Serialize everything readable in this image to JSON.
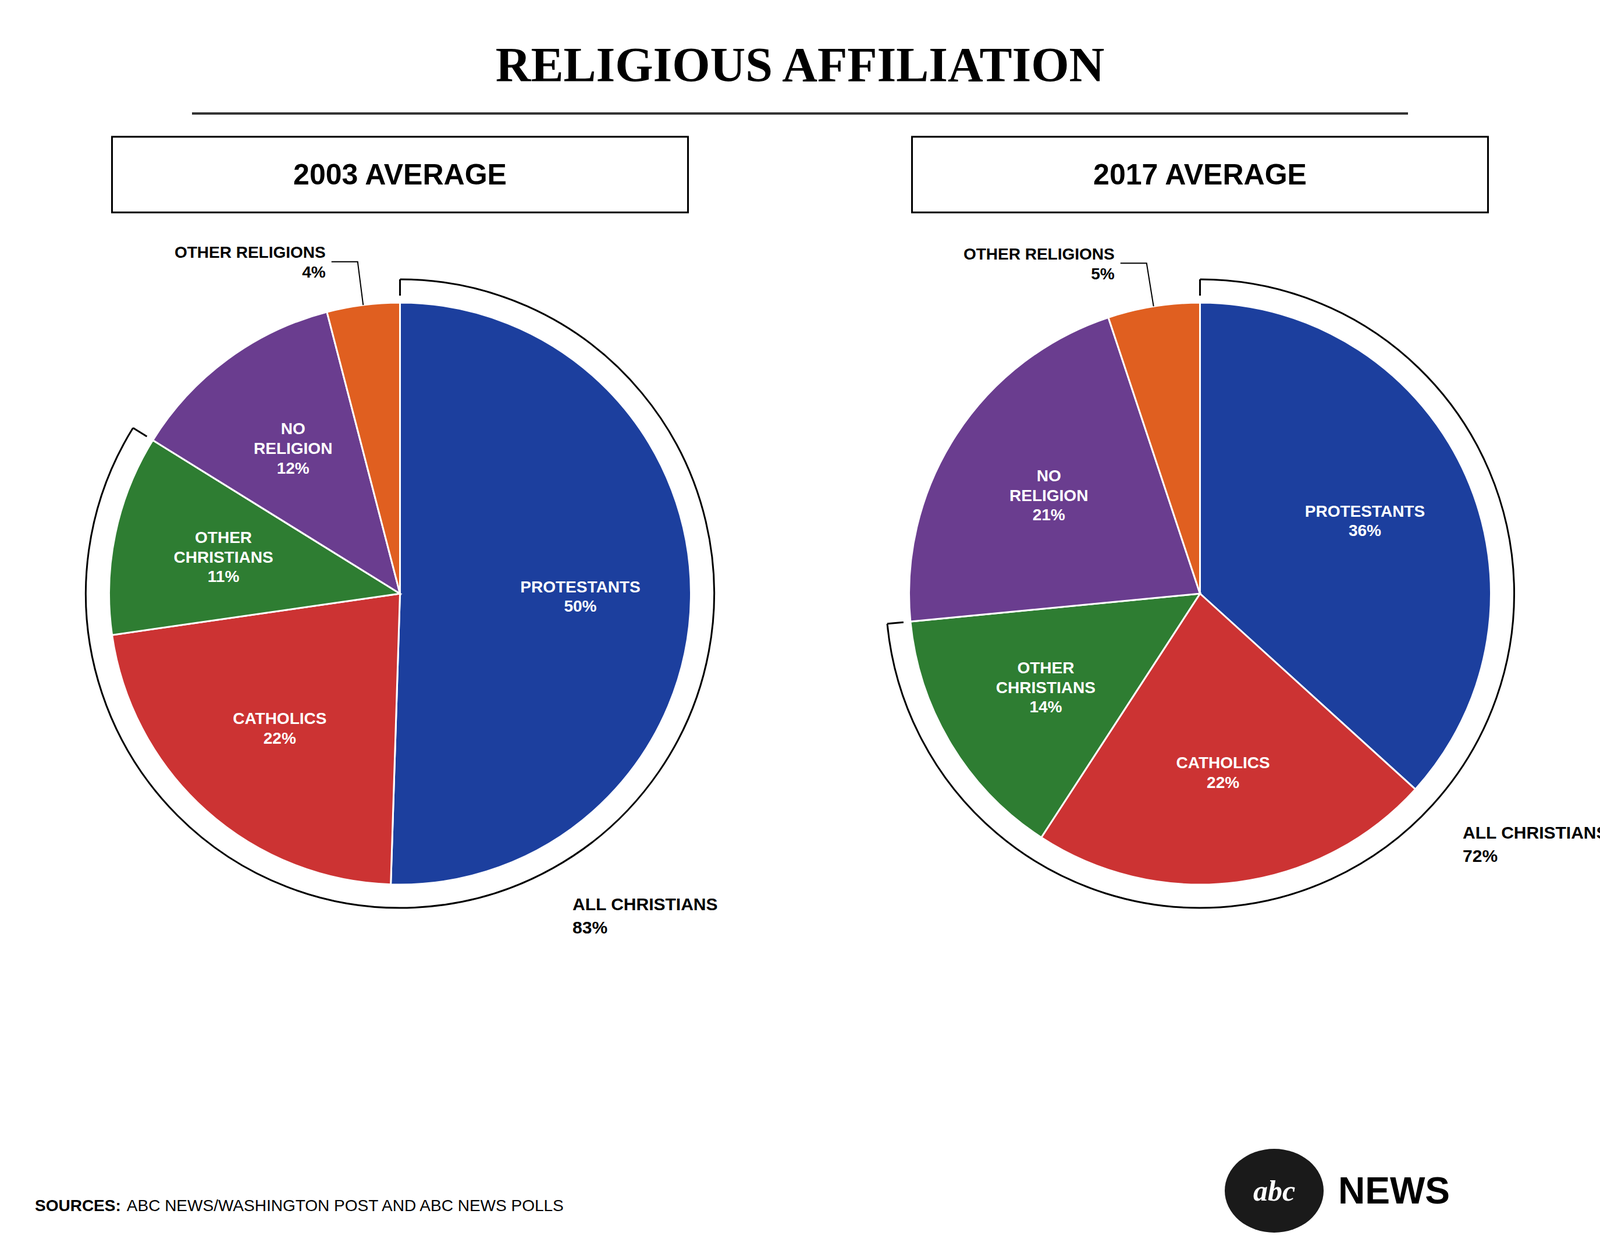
{
  "chart_data": [
    {
      "type": "pie",
      "title": "RELIGIOUS AFFILIATION",
      "subtitle": "2003 AVERAGE",
      "categories": [
        "PROTESTANTS",
        "CATHOLICS",
        "OTHER CHRISTIANS",
        "NO RELIGION",
        "OTHER RELIGIONS"
      ],
      "values": [
        50,
        22,
        11,
        12,
        4
      ],
      "value_labels": [
        "50%",
        "22%",
        "11%",
        "12%",
        "4%"
      ],
      "colors": [
        "#1c3f9e",
        "#cc3333",
        "#2e7d32",
        "#6a3d8f",
        "#e05f20"
      ],
      "data_labels": true,
      "annotations": [
        {
          "text": "ALL CHRISTIANS",
          "value": 83,
          "label": "83%"
        }
      ],
      "source_label": "SOURCES:",
      "source": "ABC NEWS/WASHINGTON POST AND ABC NEWS POLLS",
      "logo_text": [
        "abc",
        "NEWS"
      ]
    },
    {
      "type": "pie",
      "subtitle": "2017 AVERAGE",
      "categories": [
        "PROTESTANTS",
        "CATHOLICS",
        "OTHER CHRISTIANS",
        "NO RELIGION",
        "OTHER RELIGIONS"
      ],
      "values": [
        36,
        22,
        14,
        21,
        5
      ],
      "value_labels": [
        "36%",
        "22%",
        "14%",
        "21%",
        "5%"
      ],
      "colors": [
        "#1c3f9e",
        "#cc3333",
        "#2e7d32",
        "#6a3d8f",
        "#e05f20"
      ],
      "data_labels": true,
      "annotations": [
        {
          "text": "ALL CHRISTIANS",
          "value": 72,
          "label": "72%"
        }
      ]
    }
  ]
}
